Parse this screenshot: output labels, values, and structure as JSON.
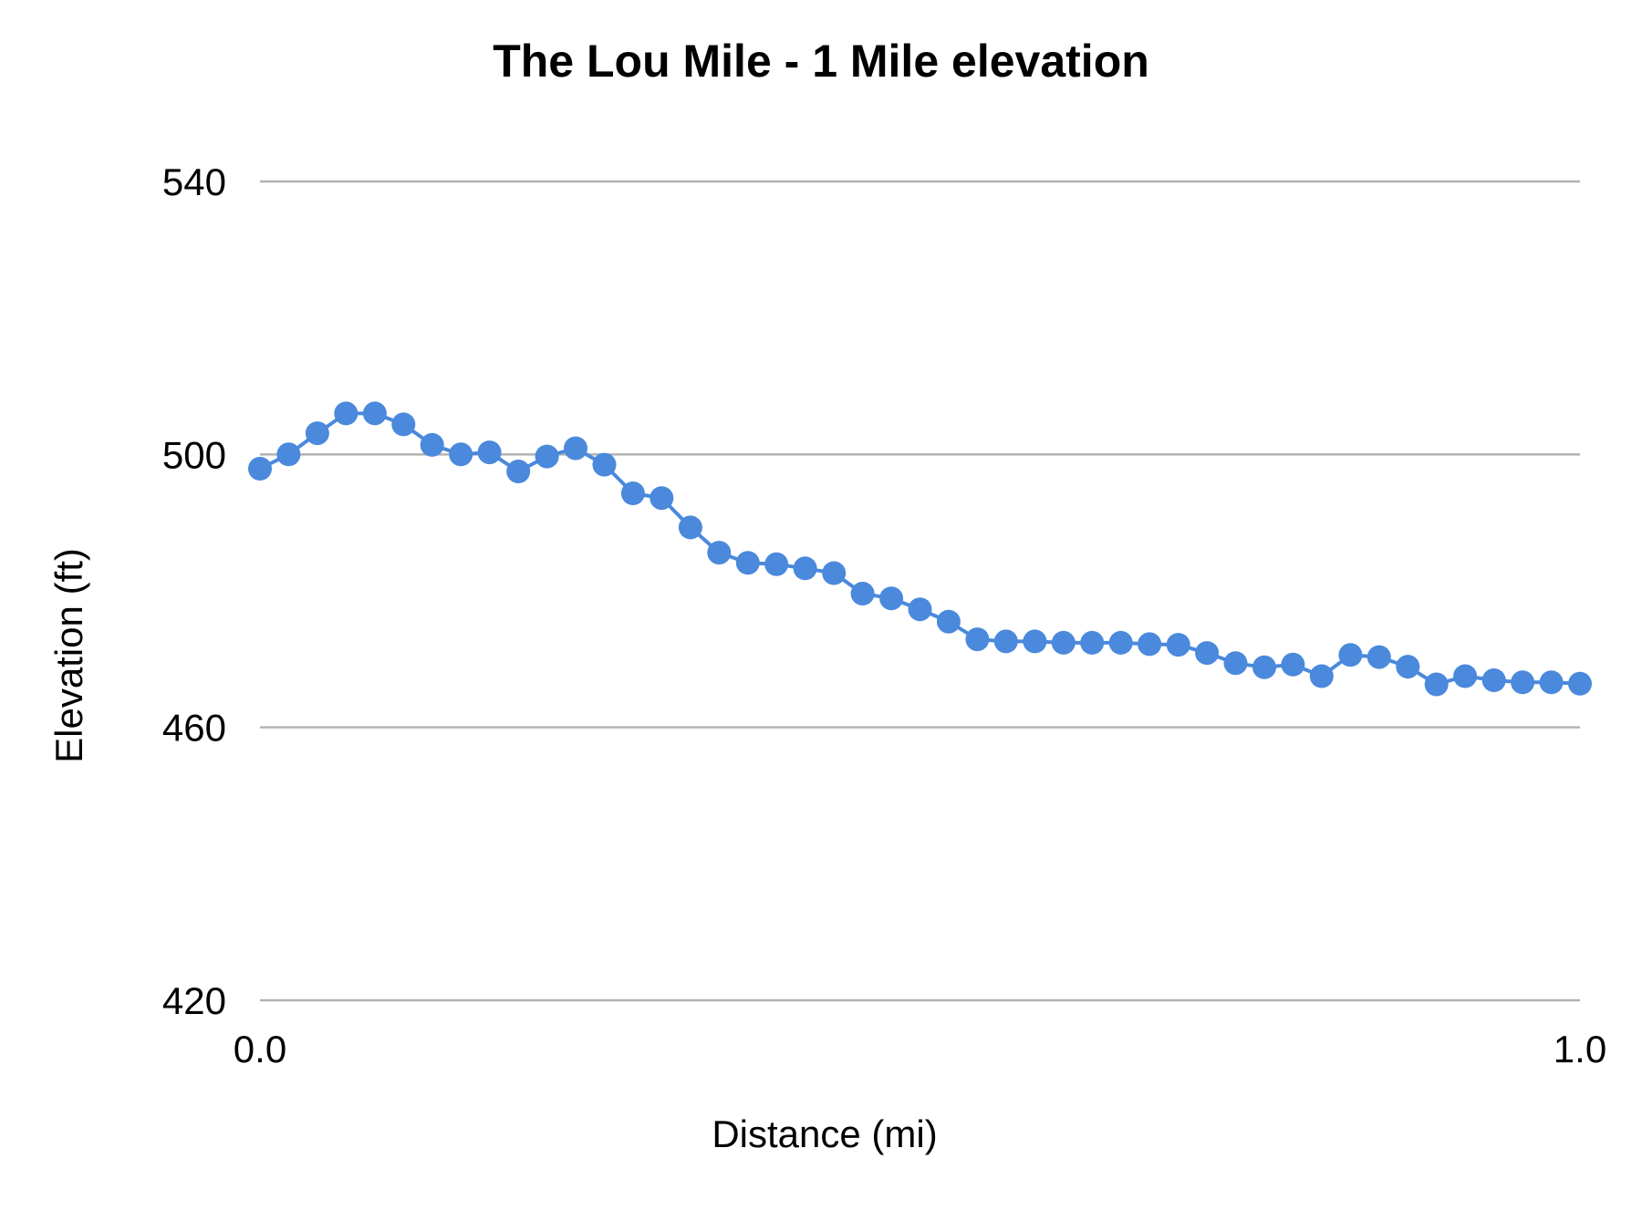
{
  "chart_data": {
    "type": "line",
    "title": "The Lou Mile - 1 Mile elevation",
    "xlabel": "Distance (mi)",
    "ylabel": "Elevation (ft)",
    "xlim": [
      0.0,
      1.0
    ],
    "ylim": [
      420,
      540
    ],
    "x_ticks": [
      "0.0",
      "1.0"
    ],
    "y_ticks": [
      "420",
      "460",
      "500",
      "540"
    ],
    "grid": true,
    "legend": "none",
    "colors": {
      "series": "#4a89dc",
      "grid": "#b3b3b3",
      "text": "#000000"
    },
    "series": [
      {
        "x": [
          0.0,
          0.0217,
          0.0435,
          0.0652,
          0.087,
          0.1087,
          0.1304,
          0.1522,
          0.1739,
          0.1957,
          0.2174,
          0.2391,
          0.2609,
          0.2826,
          0.3043,
          0.3261,
          0.3478,
          0.3696,
          0.3913,
          0.413,
          0.4348,
          0.4565,
          0.4783,
          0.5,
          0.5217,
          0.5435,
          0.5652,
          0.587,
          0.6087,
          0.6304,
          0.6522,
          0.6739,
          0.6957,
          0.7174,
          0.7391,
          0.7609,
          0.7826,
          0.8043,
          0.8261,
          0.8478,
          0.8696,
          0.8913,
          0.913,
          0.9348,
          0.9565,
          0.9783,
          1.0
        ],
        "values": [
          497.9,
          500.0,
          503.1,
          506.0,
          506.0,
          504.4,
          501.4,
          500.0,
          500.3,
          497.5,
          499.7,
          500.9,
          498.5,
          494.3,
          493.6,
          489.3,
          485.6,
          484.1,
          483.9,
          483.3,
          482.6,
          479.6,
          478.9,
          477.3,
          475.5,
          472.9,
          472.6,
          472.6,
          472.4,
          472.4,
          472.4,
          472.2,
          472.1,
          470.9,
          469.4,
          468.8,
          469.2,
          467.5,
          470.6,
          470.3,
          468.9,
          466.3,
          467.5,
          466.9,
          466.6,
          466.6,
          466.4
        ]
      }
    ]
  }
}
